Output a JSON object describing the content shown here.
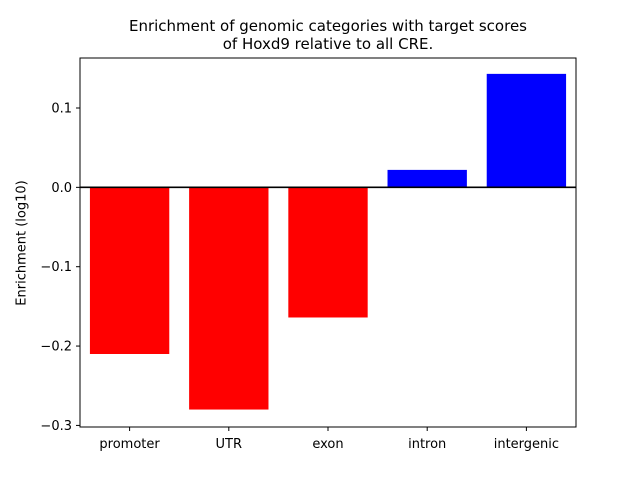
{
  "chart_data": {
    "type": "bar",
    "title": "Enrichment of genomic categories with target scores",
    "subtitle": "of Hoxd9 relative to all CRE.",
    "xlabel": "",
    "ylabel": "Enrichment (log10)",
    "categories": [
      "promoter",
      "UTR",
      "exon",
      "intron",
      "intergenic"
    ],
    "values": [
      -0.21,
      -0.28,
      -0.164,
      0.022,
      0.143
    ],
    "colors": [
      "#ff0000",
      "#ff0000",
      "#ff0000",
      "#0000ff",
      "#0000ff"
    ],
    "ylim": [
      -0.302,
      0.163
    ],
    "yticks": [
      0.1,
      0.0,
      -0.1,
      -0.2,
      -0.3
    ],
    "ytick_labels": [
      "0.1",
      "0.0",
      "−0.1",
      "−0.2",
      "−0.3"
    ],
    "zero_line": true,
    "grid": false,
    "legend": "none"
  }
}
